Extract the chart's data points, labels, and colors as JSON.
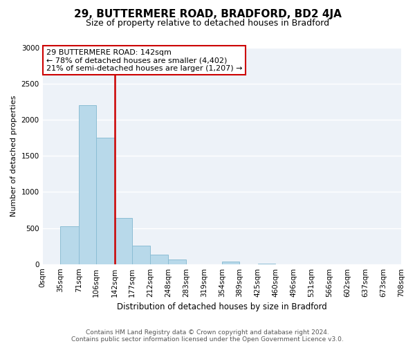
{
  "title": "29, BUTTERMERE ROAD, BRADFORD, BD2 4JA",
  "subtitle": "Size of property relative to detached houses in Bradford",
  "xlabel": "Distribution of detached houses by size in Bradford",
  "ylabel": "Number of detached properties",
  "bin_edges": [
    0,
    35,
    71,
    106,
    142,
    177,
    212,
    248,
    283,
    319,
    354,
    389,
    425,
    460,
    496,
    531,
    566,
    602,
    637,
    673,
    708
  ],
  "bin_labels": [
    "0sqm",
    "35sqm",
    "71sqm",
    "106sqm",
    "142sqm",
    "177sqm",
    "212sqm",
    "248sqm",
    "283sqm",
    "319sqm",
    "354sqm",
    "389sqm",
    "425sqm",
    "460sqm",
    "496sqm",
    "531sqm",
    "566sqm",
    "602sqm",
    "637sqm",
    "673sqm",
    "708sqm"
  ],
  "bar_heights": [
    0,
    520,
    2200,
    1750,
    640,
    260,
    130,
    60,
    0,
    0,
    40,
    0,
    10,
    0,
    0,
    0,
    0,
    0,
    0,
    0
  ],
  "bar_color": "#b8d9ea",
  "bar_edge_color": "#8bbdd4",
  "vline_x": 142,
  "vline_color": "#cc0000",
  "ylim": [
    0,
    3000
  ],
  "xlim": [
    0,
    708
  ],
  "annotation_line1": "29 BUTTERMERE ROAD: 142sqm",
  "annotation_line2": "← 78% of detached houses are smaller (4,402)",
  "annotation_line3": "21% of semi-detached houses are larger (1,207) →",
  "annotation_box_color": "#ffffff",
  "annotation_box_edge_color": "#cc0000",
  "yticks": [
    0,
    500,
    1000,
    1500,
    2000,
    2500,
    3000
  ],
  "bg_color": "#edf2f8",
  "grid_color": "#ffffff",
  "footer_line1": "Contains HM Land Registry data © Crown copyright and database right 2024.",
  "footer_line2": "Contains public sector information licensed under the Open Government Licence v3.0.",
  "title_fontsize": 11,
  "subtitle_fontsize": 9,
  "ylabel_fontsize": 8,
  "xlabel_fontsize": 8.5,
  "tick_fontsize": 7.5,
  "annot_fontsize": 8,
  "footer_fontsize": 6.5
}
